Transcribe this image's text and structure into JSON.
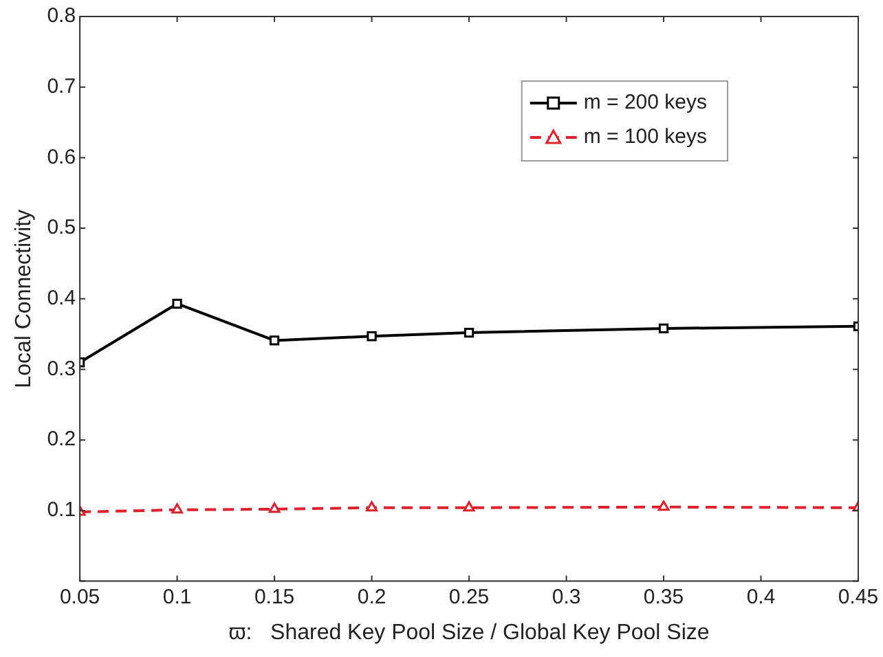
{
  "chart_data": {
    "type": "line",
    "xlabel": "ϖ:   Shared Key Pool Size / Global Key Pool Size",
    "ylabel": "Local Connectivity",
    "x": [
      0.05,
      0.1,
      0.15,
      0.2,
      0.25,
      0.35,
      0.45
    ],
    "series": [
      {
        "name": "m = 200 keys",
        "color": "#000000",
        "marker": "square",
        "line_style": "solid",
        "values": [
          0.31,
          0.393,
          0.341,
          0.347,
          0.352,
          0.358,
          0.361
        ]
      },
      {
        "name": "m = 100 keys",
        "color": "#e0202a",
        "marker": "triangle",
        "line_style": "dashed",
        "values": [
          0.098,
          0.101,
          0.102,
          0.104,
          0.104,
          0.105,
          0.104
        ]
      }
    ],
    "xlim": [
      0.05,
      0.45
    ],
    "xticks": [
      0.05,
      0.1,
      0.15,
      0.2,
      0.25,
      0.3,
      0.35,
      0.4,
      0.45
    ],
    "ylim": [
      0,
      0.8
    ],
    "yticks": [
      {
        "value": 0,
        "label": null
      },
      0.1,
      0.2,
      0.3,
      0.4,
      0.5,
      0.6,
      0.7,
      0.8
    ],
    "grid": false,
    "legend": "top right"
  }
}
